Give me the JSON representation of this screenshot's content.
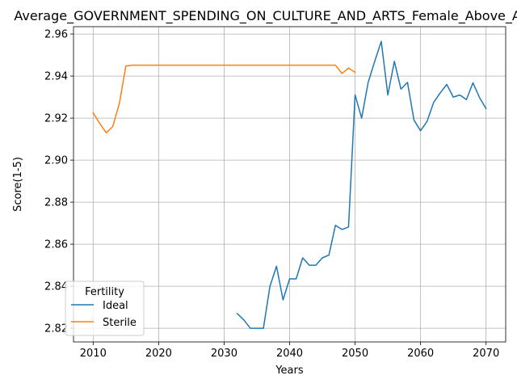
{
  "chart_data": {
    "type": "line",
    "title": "Average_GOVERNMENT_SPENDING_ON_CULTURE_AND_ARTS_Female_Above_Average",
    "xlabel": "Years",
    "ylabel": "Score(1-5)",
    "xlim": [
      2007,
      2073
    ],
    "ylim": [
      2.8135,
      2.9635
    ],
    "xticks": [
      2010,
      2020,
      2030,
      2040,
      2050,
      2060,
      2070
    ],
    "yticks": [
      2.82,
      2.84,
      2.86,
      2.88,
      2.9,
      2.92,
      2.94,
      2.96
    ],
    "ytick_labels": [
      "2.82",
      "2.84",
      "2.86",
      "2.88",
      "2.90",
      "2.92",
      "2.94",
      "2.96"
    ],
    "grid": true,
    "legend_title": "Fertility",
    "legend_position": "lower-left",
    "series": [
      {
        "name": "Ideal",
        "color": "#1f77b4",
        "x": [
          2032,
          2033,
          2034,
          2035,
          2036,
          2037,
          2038,
          2039,
          2040,
          2041,
          2042,
          2043,
          2044,
          2045,
          2046,
          2047,
          2048,
          2049,
          2050,
          2051,
          2052,
          2053,
          2054,
          2055,
          2056,
          2057,
          2058,
          2059,
          2060,
          2061,
          2062,
          2063,
          2064,
          2065,
          2066,
          2067,
          2068,
          2069,
          2070
        ],
        "y": [
          2.827,
          2.824,
          2.82,
          2.82,
          2.82,
          2.84,
          2.8495,
          2.8335,
          2.8435,
          2.8435,
          2.8535,
          2.85,
          2.85,
          2.8535,
          2.8548,
          2.869,
          2.867,
          2.8682,
          2.931,
          2.92,
          2.937,
          2.947,
          2.9565,
          2.931,
          2.947,
          2.9338,
          2.937,
          2.919,
          2.914,
          2.9185,
          2.9275,
          2.932,
          2.936,
          2.93,
          2.931,
          2.9288,
          2.9368,
          2.9298,
          2.9245
        ]
      },
      {
        "name": "Sterile",
        "color": "#ff7f0e",
        "x": [
          2010,
          2011,
          2012,
          2013,
          2014,
          2015,
          2016,
          2017,
          2018,
          2019,
          2020,
          2021,
          2022,
          2023,
          2024,
          2025,
          2026,
          2027,
          2028,
          2029,
          2030,
          2031,
          2032,
          2033,
          2034,
          2035,
          2036,
          2037,
          2038,
          2039,
          2040,
          2041,
          2042,
          2043,
          2044,
          2045,
          2046,
          2047,
          2048,
          2049,
          2050
        ],
        "y": [
          2.9225,
          2.9175,
          2.913,
          2.916,
          2.927,
          2.9448,
          2.9452,
          2.9452,
          2.9452,
          2.9452,
          2.9452,
          2.9452,
          2.9452,
          2.9452,
          2.9452,
          2.9452,
          2.9452,
          2.9452,
          2.9452,
          2.9452,
          2.9452,
          2.9452,
          2.9452,
          2.9452,
          2.9452,
          2.9452,
          2.9452,
          2.9452,
          2.9452,
          2.9452,
          2.9452,
          2.9452,
          2.9452,
          2.9452,
          2.9452,
          2.9452,
          2.9452,
          2.9452,
          2.9412,
          2.9438,
          2.9418
        ]
      }
    ]
  }
}
